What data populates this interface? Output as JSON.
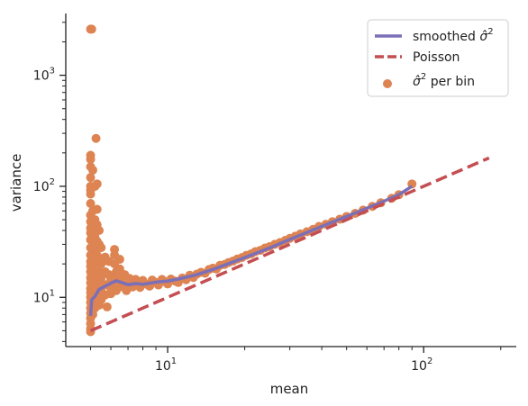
{
  "chart_data": {
    "type": "scatter",
    "xlabel": "mean",
    "ylabel": "variance",
    "xscale": "log",
    "yscale": "log",
    "xlim": [
      4.0,
      230
    ],
    "ylim": [
      3.6,
      3600
    ],
    "x_ticks": [
      {
        "value": 10,
        "base": "10",
        "exp": "1"
      },
      {
        "value": 100,
        "base": "10",
        "exp": "2"
      }
    ],
    "y_ticks": [
      {
        "value": 10,
        "base": "10",
        "exp": "1"
      },
      {
        "value": 100,
        "base": "10",
        "exp": "2"
      },
      {
        "value": 1000,
        "base": "10",
        "exp": "3"
      }
    ],
    "legend": {
      "position": "upper-right",
      "entries": [
        {
          "key": "smoothed",
          "label": "smoothed σ̂²",
          "text": "smoothed ",
          "sym": "σ̂",
          "sup": "2"
        },
        {
          "key": "poisson",
          "label": "Poisson",
          "text": "Poisson",
          "sym": "",
          "sup": ""
        },
        {
          "key": "perbin",
          "label": "σ̂² per bin",
          "text": " per bin",
          "sym": "σ̂",
          "sup": "2",
          "symFirst": true
        }
      ]
    },
    "colors": {
      "smoothed": "#7b6fb8",
      "poisson": "#c44e52",
      "perbin": "#dd8452"
    },
    "series": [
      {
        "key": "perbin",
        "type": "scatter",
        "points": [
          [
            5.0,
            2600
          ],
          [
            5.05,
            2600
          ],
          [
            5.0,
            190
          ],
          [
            5.0,
            175
          ],
          [
            5.0,
            150
          ],
          [
            5.0,
            120
          ],
          [
            5.0,
            100
          ],
          [
            5.0,
            92
          ],
          [
            5.0,
            85
          ],
          [
            5.0,
            70
          ],
          [
            5.0,
            55
          ],
          [
            5.0,
            48
          ],
          [
            5.0,
            42
          ],
          [
            5.0,
            38
          ],
          [
            5.0,
            33
          ],
          [
            5.0,
            28
          ],
          [
            5.0,
            24
          ],
          [
            5.0,
            21
          ],
          [
            5.0,
            19
          ],
          [
            5.0,
            17
          ],
          [
            5.0,
            15
          ],
          [
            5.0,
            13.5
          ],
          [
            5.0,
            12
          ],
          [
            5.0,
            11
          ],
          [
            5.0,
            10
          ],
          [
            5.0,
            9
          ],
          [
            5.0,
            8
          ],
          [
            5.0,
            7.2
          ],
          [
            5.0,
            6.5
          ],
          [
            5.0,
            5.8
          ],
          [
            5.0,
            5.2
          ],
          [
            5.0,
            4.9
          ],
          [
            5.1,
            140
          ],
          [
            5.1,
            60
          ],
          [
            5.1,
            40
          ],
          [
            5.1,
            30
          ],
          [
            5.1,
            22
          ],
          [
            5.1,
            16
          ],
          [
            5.1,
            12
          ],
          [
            5.1,
            9
          ],
          [
            5.1,
            7
          ],
          [
            5.2,
            100
          ],
          [
            5.2,
            50
          ],
          [
            5.2,
            35
          ],
          [
            5.2,
            26
          ],
          [
            5.2,
            20
          ],
          [
            5.2,
            15
          ],
          [
            5.2,
            12
          ],
          [
            5.2,
            9.5
          ],
          [
            5.2,
            8
          ],
          [
            5.25,
            270
          ],
          [
            5.3,
            105
          ],
          [
            5.3,
            62
          ],
          [
            5.3,
            45
          ],
          [
            5.3,
            32
          ],
          [
            5.3,
            24
          ],
          [
            5.3,
            17
          ],
          [
            5.3,
            14
          ],
          [
            5.3,
            11
          ],
          [
            5.3,
            9.5
          ],
          [
            5.4,
            40
          ],
          [
            5.4,
            30
          ],
          [
            5.4,
            22
          ],
          [
            5.4,
            17
          ],
          [
            5.4,
            13
          ],
          [
            5.4,
            10
          ],
          [
            5.4,
            8.5
          ],
          [
            5.5,
            28
          ],
          [
            5.5,
            20
          ],
          [
            5.5,
            15
          ],
          [
            5.5,
            11.5
          ],
          [
            5.5,
            9.5
          ],
          [
            5.7,
            23
          ],
          [
            5.7,
            17
          ],
          [
            5.7,
            13
          ],
          [
            5.7,
            10.5
          ],
          [
            5.8,
            8.2
          ],
          [
            5.9,
            21
          ],
          [
            5.9,
            16
          ],
          [
            6.0,
            14.5
          ],
          [
            6.0,
            12
          ],
          [
            6.0,
            10.8
          ],
          [
            6.2,
            27
          ],
          [
            6.2,
            24
          ],
          [
            6.2,
            20
          ],
          [
            6.3,
            17
          ],
          [
            6.3,
            15.5
          ],
          [
            6.3,
            13
          ],
          [
            6.3,
            11.5
          ],
          [
            6.5,
            22
          ],
          [
            6.5,
            18
          ],
          [
            6.6,
            15
          ],
          [
            6.6,
            12.5
          ],
          [
            6.8,
            16
          ],
          [
            6.9,
            13
          ],
          [
            6.9,
            11.5
          ],
          [
            7.1,
            14.8
          ],
          [
            7.2,
            13.2
          ],
          [
            7.3,
            12.4
          ],
          [
            7.5,
            14.5
          ],
          [
            7.7,
            13
          ],
          [
            7.8,
            12.3
          ],
          [
            8.0,
            14.2
          ],
          [
            8.3,
            13.1
          ],
          [
            8.5,
            12.6
          ],
          [
            8.7,
            14.3
          ],
          [
            9.0,
            13.6
          ],
          [
            9.2,
            12.9
          ],
          [
            9.5,
            14.5
          ],
          [
            9.8,
            13.8
          ],
          [
            10.0,
            13.2
          ],
          [
            10.3,
            14.6
          ],
          [
            10.7,
            14.0
          ],
          [
            11.0,
            13.6
          ],
          [
            11.4,
            14.9
          ],
          [
            11.8,
            14.4
          ],
          [
            12.2,
            15.8
          ],
          [
            12.6,
            15.1
          ],
          [
            13.0,
            16.2
          ],
          [
            13.5,
            16.8
          ],
          [
            14.0,
            16.5
          ],
          [
            14.5,
            17.8
          ],
          [
            15.0,
            18.3
          ],
          [
            15.5,
            18.0
          ],
          [
            16.0,
            19.4
          ],
          [
            16.7,
            19.8
          ],
          [
            17.3,
            20.6
          ],
          [
            18.0,
            21.2
          ],
          [
            18.7,
            22.1
          ],
          [
            19.5,
            22.8
          ],
          [
            20.3,
            23.9
          ],
          [
            21.2,
            24.6
          ],
          [
            22.0,
            25.8
          ],
          [
            23.0,
            26.5
          ],
          [
            24.0,
            27.8
          ],
          [
            25.0,
            28.6
          ],
          [
            26.2,
            30.0
          ],
          [
            27.5,
            31.2
          ],
          [
            28.8,
            32.6
          ],
          [
            30.0,
            34.0
          ],
          [
            31.5,
            35.5
          ],
          [
            33.0,
            37.2
          ],
          [
            35.0,
            39.0
          ],
          [
            37.0,
            41.0
          ],
          [
            39.0,
            43.5
          ],
          [
            41.5,
            45.5
          ],
          [
            44.0,
            48.0
          ],
          [
            47.0,
            50.5
          ],
          [
            50.0,
            53.5
          ],
          [
            54.0,
            57.0
          ],
          [
            58.0,
            61.0
          ],
          [
            63.0,
            66.0
          ],
          [
            68.0,
            71.0
          ],
          [
            75.0,
            78.0
          ],
          [
            80.0,
            84.0
          ],
          [
            90.0,
            105.0
          ]
        ]
      },
      {
        "key": "smoothed",
        "type": "line",
        "points": [
          [
            5.0,
            6.8
          ],
          [
            5.05,
            9.5
          ],
          [
            5.2,
            10.2
          ],
          [
            5.4,
            11.8
          ],
          [
            5.7,
            12.6
          ],
          [
            6.0,
            13.4
          ],
          [
            6.3,
            14.1
          ],
          [
            6.6,
            13.6
          ],
          [
            7.0,
            13.0
          ],
          [
            7.5,
            13.3
          ],
          [
            8.0,
            13.1
          ],
          [
            9.0,
            13.7
          ],
          [
            10.0,
            14.0
          ],
          [
            11.0,
            14.6
          ],
          [
            12.0,
            15.3
          ],
          [
            13.0,
            16.0
          ],
          [
            15.0,
            17.8
          ],
          [
            17.0,
            19.8
          ],
          [
            20.0,
            22.8
          ],
          [
            25.0,
            27.8
          ],
          [
            30.0,
            33.2
          ],
          [
            40.0,
            43.5
          ],
          [
            50.0,
            53.5
          ],
          [
            60.0,
            63.5
          ],
          [
            70.0,
            73.5
          ],
          [
            80.0,
            84.0
          ],
          [
            90.0,
            100.0
          ]
        ]
      },
      {
        "key": "poisson",
        "type": "line",
        "points": [
          [
            5.0,
            5.0
          ],
          [
            180.0,
            180.0
          ]
        ]
      }
    ]
  }
}
